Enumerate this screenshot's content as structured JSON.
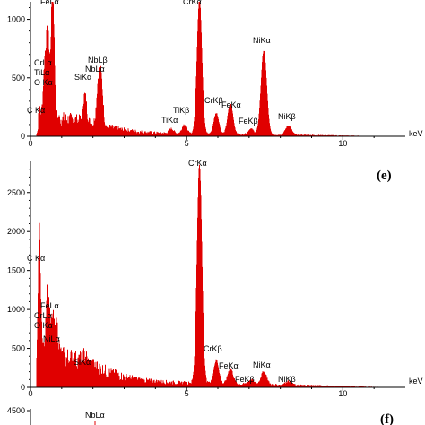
{
  "chart_data": [
    {
      "type": "line",
      "panel_label": "",
      "xlabel": "keV",
      "x_ticks": [
        0,
        5,
        10
      ],
      "y_ticks": [
        0,
        500,
        1000
      ],
      "y_tick_labels": [
        "0",
        "500",
        "1000"
      ],
      "xlim": [
        0,
        12
      ],
      "ylim": [
        0,
        1150
      ],
      "color": "#e00000",
      "peaks": [
        {
          "label": "FeLα",
          "x": 0.71,
          "y": 1110
        },
        {
          "label": "CrLα",
          "x": 0.57,
          "y": 500
        },
        {
          "label": "TiLα",
          "x": 0.45,
          "y": 380
        },
        {
          "label": "O Kα",
          "x": 0.52,
          "y": 300
        },
        {
          "label": "C Kα",
          "x": 0.28,
          "y": 80
        },
        {
          "label": "SiKα",
          "x": 1.74,
          "y": 230
        },
        {
          "label": "NbLβ",
          "x": 2.26,
          "y": 370
        },
        {
          "label": "NbLα",
          "x": 2.17,
          "y": 300
        },
        {
          "label": "TiKα",
          "x": 4.51,
          "y": 40
        },
        {
          "label": "TiKβ",
          "x": 4.93,
          "y": 80
        },
        {
          "label": "CrKα",
          "x": 5.41,
          "y": 1150
        },
        {
          "label": "CrKβ",
          "x": 5.95,
          "y": 180
        },
        {
          "label": "FeKα",
          "x": 6.4,
          "y": 260
        },
        {
          "label": "FeKβ",
          "x": 7.06,
          "y": 50
        },
        {
          "label": "NiKα",
          "x": 7.47,
          "y": 720
        },
        {
          "label": "NiKβ",
          "x": 8.26,
          "y": 80
        }
      ]
    },
    {
      "type": "line",
      "panel_label": "(e)",
      "xlabel": "keV",
      "x_ticks": [
        0,
        5,
        10
      ],
      "y_ticks": [
        0,
        500,
        1000,
        1500,
        2000,
        2500
      ],
      "y_tick_labels": [
        "0",
        "500",
        "1000",
        "1500",
        "2000",
        "2500"
      ],
      "xlim": [
        0,
        12
      ],
      "ylim": [
        0,
        2900
      ],
      "color": "#e00000",
      "peaks": [
        {
          "label": "C Kα",
          "x": 0.28,
          "y": 1650
        },
        {
          "label": "FeLα",
          "x": 0.71,
          "y": 480
        },
        {
          "label": "CrLα",
          "x": 0.57,
          "y": 570
        },
        {
          "label": "O Kα",
          "x": 0.52,
          "y": 500
        },
        {
          "label": "NiLα",
          "x": 0.85,
          "y": 380
        },
        {
          "label": "SiKα",
          "x": 1.74,
          "y": 100
        },
        {
          "label": "CrKα",
          "x": 5.41,
          "y": 2800
        },
        {
          "label": "CrKβ",
          "x": 5.95,
          "y": 300
        },
        {
          "label": "FeKα",
          "x": 6.4,
          "y": 200
        },
        {
          "label": "FeKβ",
          "x": 7.06,
          "y": 60
        },
        {
          "label": "NiKα",
          "x": 7.47,
          "y": 170
        },
        {
          "label": "NiKβ",
          "x": 8.26,
          "y": 50
        }
      ]
    },
    {
      "type": "line",
      "panel_label": "(f)",
      "y_tick_labels": [
        "4500"
      ],
      "peaks": [
        {
          "label": "NbLα"
        }
      ]
    }
  ]
}
